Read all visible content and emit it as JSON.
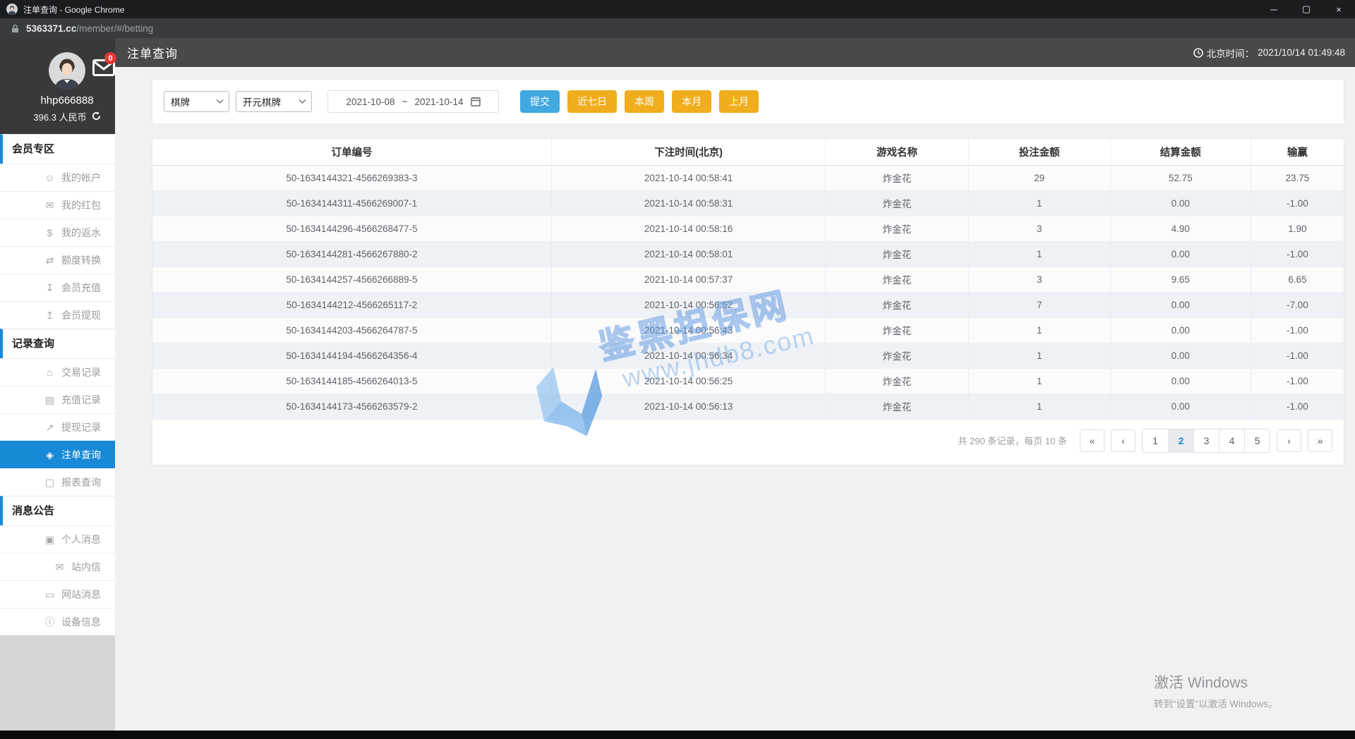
{
  "browser": {
    "title": "注单查询 - Google Chrome",
    "url_domain": "5363371.cc",
    "url_path": "/member/#/betting",
    "controls": {
      "minimize": "─",
      "maximize": "▢",
      "close": "×"
    }
  },
  "header": {
    "title": "注单查询",
    "time_label": "北京时间：",
    "time": "2021/10/14 01:49:48"
  },
  "user": {
    "name": "hhp666888",
    "balance": "396.3 人民币",
    "mail_badge": "0"
  },
  "sidebar": {
    "sections": [
      {
        "label": "会员专区",
        "items": [
          {
            "icon": "account-icon",
            "glyph": "☺",
            "label": "我的帐户"
          },
          {
            "icon": "red-packet-icon",
            "glyph": "✉",
            "label": "我的红包"
          },
          {
            "icon": "rebate-icon",
            "glyph": "$",
            "label": "我的返水"
          },
          {
            "icon": "transfer-icon",
            "glyph": "⇄",
            "label": "额度转换"
          },
          {
            "icon": "deposit-icon",
            "glyph": "↧",
            "label": "会员充值"
          },
          {
            "icon": "withdraw-icon",
            "glyph": "↥",
            "label": "会员提现"
          }
        ]
      },
      {
        "label": "记录查询",
        "items": [
          {
            "icon": "transaction-record-icon",
            "glyph": "⌂",
            "label": "交易记录"
          },
          {
            "icon": "deposit-record-icon",
            "glyph": "▤",
            "label": "充值记录"
          },
          {
            "icon": "withdraw-record-icon",
            "glyph": "↗",
            "label": "提现记录"
          },
          {
            "icon": "bet-query-icon",
            "glyph": "◈",
            "label": "注单查询",
            "active": true
          },
          {
            "icon": "report-query-icon",
            "glyph": "▢",
            "label": "报表查询"
          }
        ]
      },
      {
        "label": "消息公告",
        "items": [
          {
            "icon": "personal-message-icon",
            "glyph": "▣",
            "label": "个人消息"
          },
          {
            "icon": "site-mail-icon",
            "glyph": "✉",
            "label": "站内信"
          },
          {
            "icon": "site-message-icon",
            "glyph": "▭",
            "label": "网站消息"
          },
          {
            "icon": "device-info-icon",
            "glyph": "ⓘ",
            "label": "设备信息"
          }
        ]
      }
    ]
  },
  "filters": {
    "category": "棋牌",
    "platform": "开元棋牌",
    "date_from": "2021-10-08",
    "date_separator": "~",
    "date_to": "2021-10-14",
    "submit": "提交",
    "quick_buttons": [
      "近七日",
      "本周",
      "本月",
      "上月"
    ]
  },
  "table": {
    "columns": [
      "订单编号",
      "下注时间(北京)",
      "游戏名称",
      "投注金额",
      "结算金额",
      "输赢"
    ],
    "rows": [
      [
        "50-1634144321-4566269383-3",
        "2021-10-14 00:58:41",
        "炸金花",
        "29",
        "52.75",
        "23.75"
      ],
      [
        "50-1634144311-4566269007-1",
        "2021-10-14 00:58:31",
        "炸金花",
        "1",
        "0.00",
        "-1.00"
      ],
      [
        "50-1634144296-4566268477-5",
        "2021-10-14 00:58:16",
        "炸金花",
        "3",
        "4.90",
        "1.90"
      ],
      [
        "50-1634144281-4566267880-2",
        "2021-10-14 00:58:01",
        "炸金花",
        "1",
        "0.00",
        "-1.00"
      ],
      [
        "50-1634144257-4566266889-5",
        "2021-10-14 00:57:37",
        "炸金花",
        "3",
        "9.65",
        "6.65"
      ],
      [
        "50-1634144212-4566265117-2",
        "2021-10-14 00:56:52",
        "炸金花",
        "7",
        "0.00",
        "-7.00"
      ],
      [
        "50-1634144203-4566264787-5",
        "2021-10-14 00:56:43",
        "炸金花",
        "1",
        "0.00",
        "-1.00"
      ],
      [
        "50-1634144194-4566264356-4",
        "2021-10-14 00:56:34",
        "炸金花",
        "1",
        "0.00",
        "-1.00"
      ],
      [
        "50-1634144185-4566264013-5",
        "2021-10-14 00:56:25",
        "炸金花",
        "1",
        "0.00",
        "-1.00"
      ],
      [
        "50-1634144173-4566263579-2",
        "2021-10-14 00:56:13",
        "炸金花",
        "1",
        "0.00",
        "-1.00"
      ]
    ]
  },
  "pagination": {
    "summary": "共 290 条记录，每页 10 条",
    "first": "«",
    "prev": "‹",
    "next": "›",
    "last": "»",
    "pages": [
      "1",
      "2",
      "3",
      "4",
      "5"
    ],
    "active_page": "2"
  },
  "watermark": {
    "brand": "鉴黑担保网",
    "url": "www.jhdb8.com"
  },
  "activation": {
    "line1": "激活 Windows",
    "line2": "转到“设置”以激活 Windows。"
  },
  "colors": {
    "accent_blue": "#1789d6",
    "submit_blue": "#41a9e0",
    "button_yellow": "#f0ad1e",
    "badge_red": "#e53935"
  }
}
